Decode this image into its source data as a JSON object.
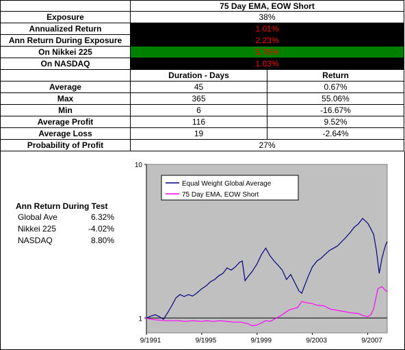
{
  "title": "75 Day EMA, EOW Short",
  "summary": [
    {
      "label": "Exposure",
      "value": "38%"
    },
    {
      "label": "Annualized Return",
      "value": "1.01%"
    },
    {
      "label": "Ann Return During Exposure",
      "value": "2.23%"
    },
    {
      "label": "On Nikkei 225",
      "value": "5.76%"
    },
    {
      "label": "On NASDAQ",
      "value": "1.03%"
    }
  ],
  "columns": {
    "duration": "Duration - Days",
    "return": "Return"
  },
  "rows": [
    {
      "label": "Average",
      "duration": "45",
      "return": "0.67%"
    },
    {
      "label": "Max",
      "duration": "365",
      "return": "55.06%"
    },
    {
      "label": "Min",
      "duration": "6",
      "return": "-16.67%"
    },
    {
      "label": "Average Profit",
      "duration": "116",
      "return": "9.52%"
    },
    {
      "label": "Average Loss",
      "duration": "19",
      "return": "-2.64%"
    }
  ],
  "probability": {
    "label": "Probability of Profit",
    "value": "27%"
  },
  "test_returns": {
    "title": "Ann Return During Test",
    "items": [
      {
        "name": "Global Ave",
        "value": "6.32%"
      },
      {
        "name": "Nikkei 225",
        "value": "-4.02%"
      },
      {
        "name": "NASDAQ",
        "value": "8.80%"
      }
    ]
  },
  "colors": {
    "highlight_black": "#000000",
    "highlight_green": "#008000",
    "highlight_text": "#ff0000",
    "plot_bg": "#c0c0c0",
    "series_global": "#000080",
    "series_ema": "#ff00ff"
  },
  "chart_data": {
    "type": "line",
    "title": "",
    "xlabel": "",
    "ylabel": "",
    "yscale": "log",
    "ylim": [
      0.8,
      10
    ],
    "xlim": [
      1991.67,
      2009.08
    ],
    "y_ticks": [
      "1",
      "10"
    ],
    "x_ticks": [
      {
        "label": "9/1991",
        "x": 1991.67
      },
      {
        "label": "9/1995",
        "x": 1995.67
      },
      {
        "label": "9/1999",
        "x": 1999.67
      },
      {
        "label": "9/2003",
        "x": 2003.67
      },
      {
        "label": "9/2007",
        "x": 2007.67
      }
    ],
    "reference_line": 1,
    "legend_position": "top-left",
    "series": [
      {
        "name": "Equal Weight Global Average",
        "color": "#000080",
        "x": [
          1991.67,
          1992.0,
          1992.3,
          1992.6,
          1992.9,
          1993.2,
          1993.5,
          1993.8,
          1994.1,
          1994.4,
          1994.7,
          1995.0,
          1995.3,
          1995.67,
          1996.0,
          1996.3,
          1996.6,
          1996.9,
          1997.2,
          1997.5,
          1997.8,
          1998.1,
          1998.4,
          1998.6,
          1998.8,
          1999.0,
          1999.3,
          1999.67,
          2000.0,
          2000.3,
          2000.6,
          2000.9,
          2001.2,
          2001.5,
          2001.8,
          2002.1,
          2002.4,
          2002.7,
          2002.9,
          2003.1,
          2003.4,
          2003.67,
          2004.0,
          2004.3,
          2004.6,
          2004.9,
          2005.2,
          2005.5,
          2005.8,
          2006.1,
          2006.4,
          2006.7,
          2007.0,
          2007.3,
          2007.67,
          2007.9,
          2008.1,
          2008.3,
          2008.5,
          2008.7,
          2008.85,
          2009.0,
          2009.08
        ],
        "y": [
          1.0,
          1.03,
          1.05,
          1.02,
          0.98,
          1.08,
          1.2,
          1.35,
          1.42,
          1.38,
          1.42,
          1.39,
          1.45,
          1.55,
          1.62,
          1.72,
          1.78,
          1.88,
          1.95,
          2.12,
          2.05,
          2.15,
          2.3,
          2.35,
          1.75,
          1.85,
          2.0,
          2.25,
          2.6,
          2.85,
          2.55,
          2.35,
          2.2,
          2.05,
          1.78,
          1.92,
          1.7,
          1.5,
          1.45,
          1.62,
          1.9,
          2.15,
          2.35,
          2.45,
          2.6,
          2.75,
          2.85,
          2.95,
          3.15,
          3.35,
          3.6,
          3.9,
          4.1,
          4.45,
          4.15,
          3.8,
          3.5,
          2.75,
          1.95,
          2.45,
          2.75,
          3.05,
          3.15
        ]
      },
      {
        "name": "75 Day EMA, EOW Short",
        "color": "#ff00ff",
        "x": [
          1991.67,
          1992.0,
          1992.5,
          1993.0,
          1993.5,
          1994.0,
          1994.5,
          1995.0,
          1995.67,
          1996.0,
          1996.5,
          1997.0,
          1997.5,
          1998.0,
          1998.5,
          1998.7,
          1999.0,
          1999.3,
          1999.67,
          2000.0,
          2000.3,
          2000.6,
          2001.0,
          2001.5,
          2001.8,
          2002.0,
          2002.3,
          2002.6,
          2002.9,
          2003.2,
          2003.67,
          2004.0,
          2004.5,
          2005.0,
          2005.5,
          2006.0,
          2006.5,
          2007.0,
          2007.3,
          2007.67,
          2007.9,
          2008.1,
          2008.4,
          2008.7,
          2008.9,
          2009.08
        ],
        "y": [
          1.0,
          0.98,
          0.97,
          0.96,
          0.96,
          0.96,
          0.95,
          0.96,
          0.95,
          0.96,
          0.95,
          0.96,
          0.95,
          0.94,
          0.94,
          0.93,
          0.92,
          0.89,
          0.9,
          0.93,
          0.96,
          0.95,
          0.99,
          1.05,
          1.1,
          1.13,
          1.15,
          1.17,
          1.28,
          1.26,
          1.24,
          1.21,
          1.2,
          1.14,
          1.12,
          1.1,
          1.08,
          1.07,
          1.04,
          1.02,
          1.05,
          1.15,
          1.55,
          1.6,
          1.53,
          1.48
        ]
      }
    ]
  }
}
